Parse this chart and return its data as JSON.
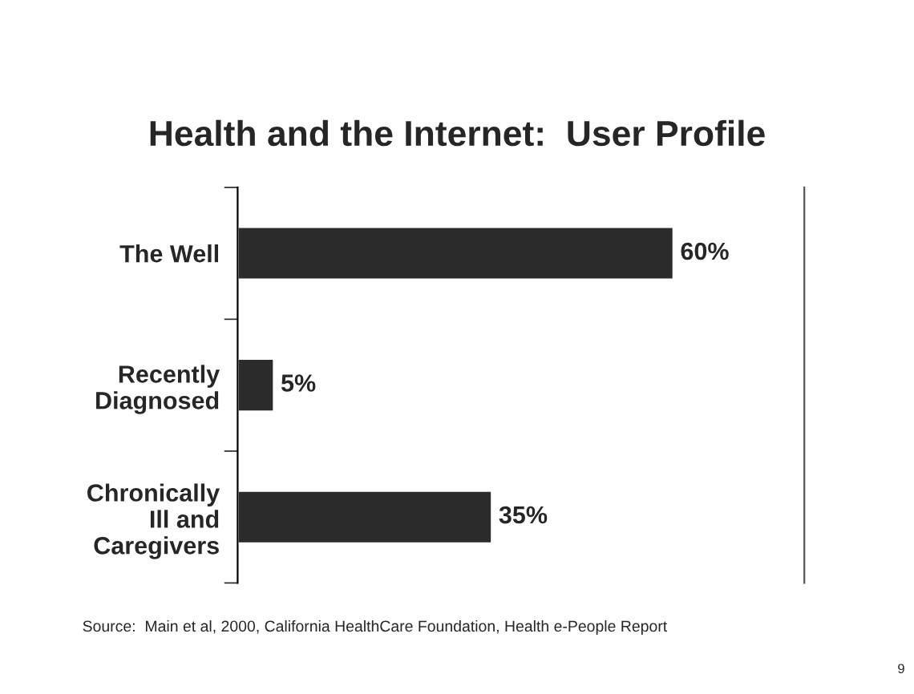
{
  "chart_data": {
    "type": "bar",
    "orientation": "horizontal",
    "title": "Health and the Internet:  User Profile",
    "categories": [
      "The Well",
      "Recently\nDiagnosed",
      "Chronically\nIll and\nCaregivers"
    ],
    "values": [
      60,
      5,
      35
    ],
    "color": "#2b2b2b",
    "data_labels": true,
    "value_labels": [
      "60%",
      "5%",
      "35%"
    ],
    "grid": false,
    "legend": false,
    "annotations": [
      "Source:  Main et al, 2000, California HealthCare Foundation, Health e-People Report",
      "9"
    ]
  }
}
